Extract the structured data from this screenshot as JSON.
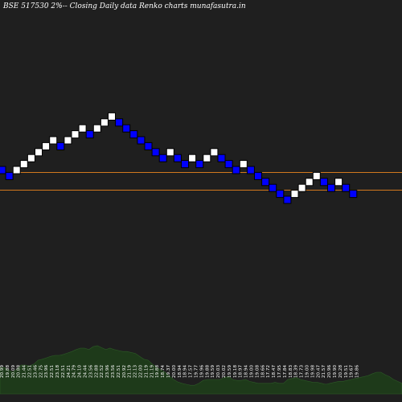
{
  "chart_data": {
    "type": "renko",
    "title": "BSE 517530  2%-- Closing Daily data Renko  charts munafasutra.in",
    "box_moves": [
      -1,
      -1,
      1,
      1,
      1,
      1,
      1,
      1,
      -1,
      1,
      1,
      1,
      -1,
      1,
      1,
      1,
      -1,
      -1,
      -1,
      -1,
      -1,
      -1,
      -1,
      1,
      -1,
      -1,
      1,
      -1,
      1,
      1,
      -1,
      -1,
      -1,
      1,
      -1,
      -1,
      -1,
      -1,
      -1,
      -1,
      1,
      1,
      1,
      1,
      -1,
      -1,
      1,
      -1,
      -1
    ],
    "colors": {
      "up": "#ffffff",
      "down": "#0000ff",
      "box_border": "#000000",
      "reference_lines": "#d2781e",
      "volume_fill": "#1e3a1a",
      "background": "#1f1f1f"
    },
    "reference_lines": [
      "upper",
      "lower"
    ],
    "bottom_labels": [
      "20.99",
      "19.88",
      "20.09",
      "20.88",
      "21.44",
      "22.51",
      "23.46",
      "22.75",
      "23.96",
      "22.51",
      "23.18",
      "22.51",
      "24.21",
      "24.79",
      "24.10",
      "24.44",
      "23.56",
      "22.88",
      "22.52",
      "23.96",
      "23.56",
      "22.51",
      "20.92",
      "21.19",
      "22.13",
      "22.00",
      "21.19",
      "21.19",
      "19.88",
      "18.74",
      "19.37",
      "20.00",
      "18.94",
      "18.94",
      "17.57",
      "19.77",
      "19.96",
      "19.88",
      "19.59",
      "20.03",
      "20.02",
      "19.59",
      "19.18",
      "18.97",
      "18.94",
      "19.00",
      "19.08",
      "18.66",
      "17.72",
      "18.47",
      "17.95",
      "17.84",
      "18.83",
      "18.39",
      "17.73",
      "19.00",
      "19.98",
      "20.47",
      "21.57",
      "20.96",
      "19.90",
      "20.28",
      "19.51",
      "19.67",
      "19.86"
    ],
    "volume_levels": [
      0.55,
      0.55,
      0.5,
      0.45,
      0.52,
      0.6,
      0.6,
      0.58,
      0.62,
      0.7,
      0.72,
      0.75,
      0.78,
      0.8,
      0.8,
      0.82,
      0.85,
      0.88,
      0.92,
      0.95,
      0.95,
      0.92,
      0.98,
      1.0,
      0.96,
      0.92,
      0.95,
      0.92,
      0.9,
      0.88,
      0.88,
      0.86,
      0.84,
      0.78,
      0.72,
      0.7,
      0.62,
      0.55,
      0.5,
      0.45,
      0.38,
      0.3,
      0.25,
      0.22,
      0.2,
      0.18,
      0.18,
      0.22,
      0.28,
      0.3,
      0.3,
      0.3,
      0.3,
      0.34,
      0.36,
      0.3,
      0.28,
      0.28,
      0.3,
      0.26,
      0.24,
      0.22,
      0.22,
      0.22,
      0.22,
      0.24,
      0.22,
      0.22,
      0.3,
      0.32,
      0.34,
      0.3,
      0.28,
      0.26,
      0.24,
      0.24,
      0.22,
      0.2,
      0.22,
      0.24,
      0.26,
      0.26,
      0.28,
      0.3,
      0.32,
      0.34,
      0.36,
      0.38,
      0.42,
      0.45,
      0.45,
      0.4,
      0.36,
      0.3,
      0.26,
      0.22
    ]
  }
}
